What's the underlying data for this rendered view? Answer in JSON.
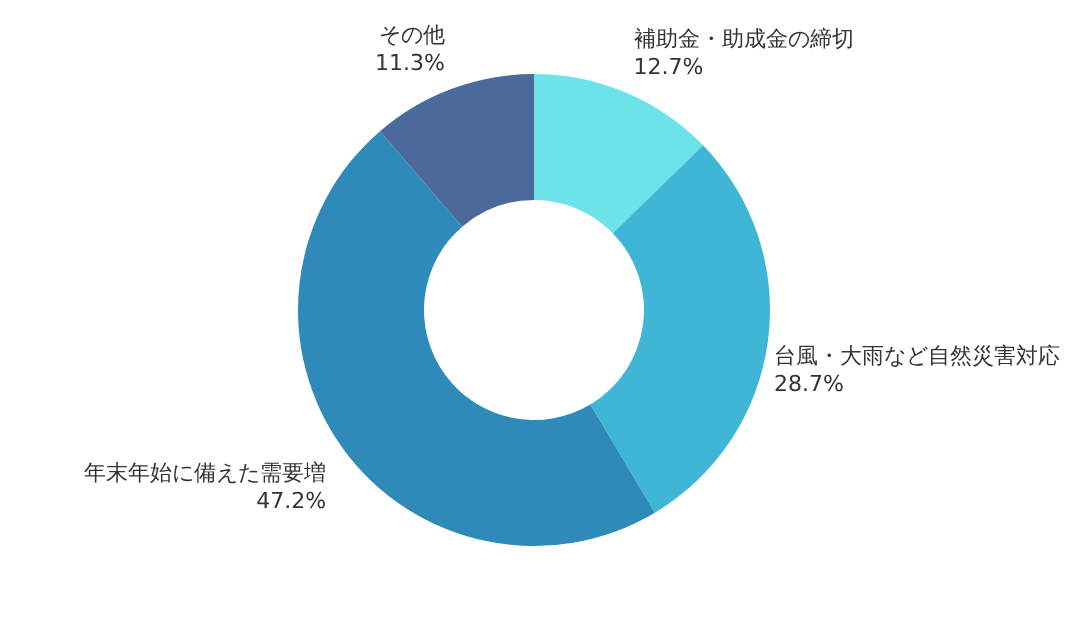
{
  "chart_data": {
    "type": "donut",
    "categories": [
      "補助金・助成金の締切",
      "台風・大雨など自然災害対応",
      "年末年始に備えた需要増",
      "その他"
    ],
    "values": [
      12.7,
      28.7,
      47.2,
      11.3
    ],
    "colors": [
      "#6be3e9",
      "#40b6d6",
      "#2e8ab8",
      "#4b6a9b"
    ],
    "value_labels": [
      "12.7%",
      "28.7%",
      "47.2%",
      "11.3%"
    ],
    "legend": false
  }
}
